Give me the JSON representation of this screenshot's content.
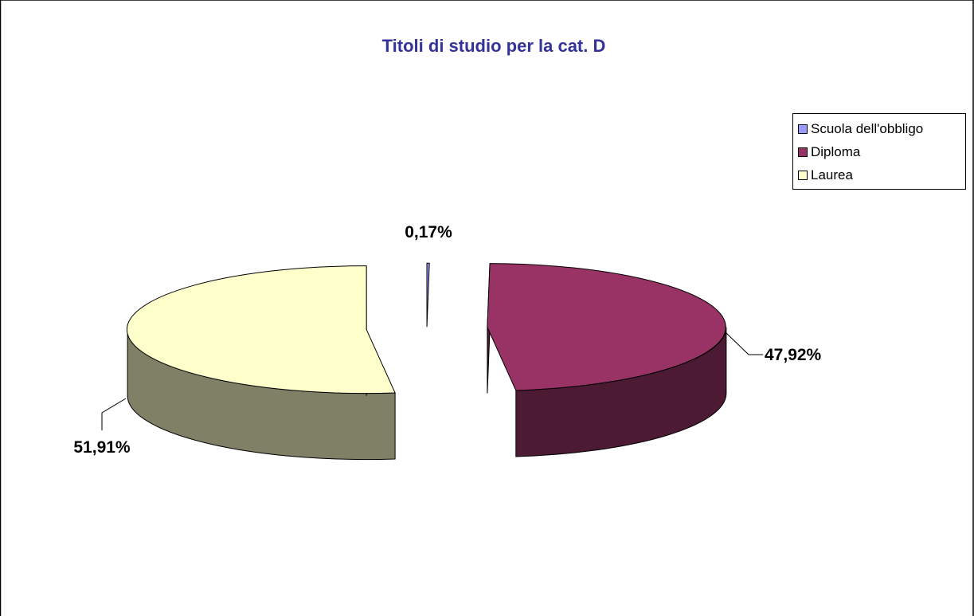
{
  "chart_data": {
    "type": "pie",
    "title": "Titoli di studio per la cat. D",
    "legend_position": "top-right",
    "slices": [
      {
        "name": "Scuola dell'obbligo",
        "value": 0.17,
        "label": "0,17%",
        "color": "#9999ff",
        "side_color": "#4d4d80"
      },
      {
        "name": "Diploma",
        "value": 47.92,
        "label": "47,92%",
        "color": "#993366",
        "side_color": "#4d1a33"
      },
      {
        "name": "Laurea",
        "value": 51.91,
        "label": "51,91%",
        "color": "#ffffcc",
        "side_color": "#808066"
      }
    ]
  },
  "colors": {
    "title": "#333399",
    "border": "#000000"
  }
}
